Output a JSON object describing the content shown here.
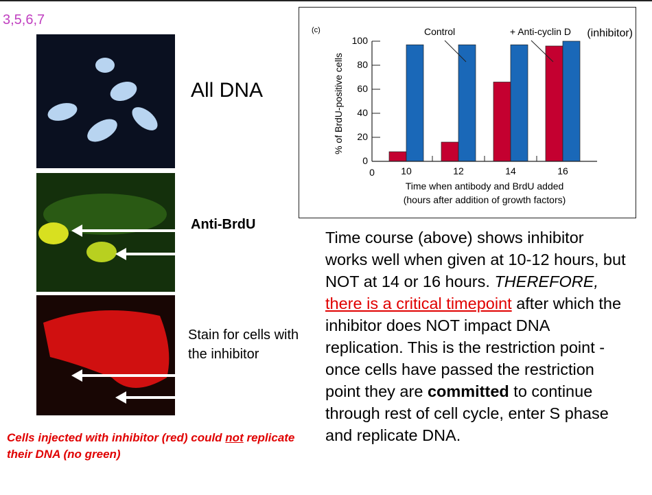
{
  "slide_number": "3,5,6,7",
  "panels": {
    "all_dna": "All DNA",
    "anti_brdu": "Anti-BrdU",
    "inhibitor_stain": "Stain for cells with the inhibitor"
  },
  "caption": {
    "part1": "Cells injected with inhibitor (red) could ",
    "not": "not",
    "part2": " replicate their DNA (no green)"
  },
  "body": {
    "p1": "Time course (above) shows inhibitor works well when given at 10-12 hours, but NOT at 14 or 16 hours. ",
    "therefore": "THEREFORE,",
    "link": "there is a critical timepoint",
    "p2": " after which the inhibitor does NOT impact DNA replication. This is the restriction point - once cells have passed the restriction point they are ",
    "committed": "committed",
    "p3": " to continue through rest of cell cycle, enter S phase and replicate DNA."
  },
  "chart_data": {
    "type": "bar",
    "panel_label": "(c)",
    "categories": [
      "10",
      "12",
      "14",
      "16"
    ],
    "series": [
      {
        "name": "+ Anti-cyclin D",
        "color": "#c40030",
        "values": [
          8,
          16,
          66,
          96
        ]
      },
      {
        "name": "Control",
        "color": "#1a68b8",
        "values": [
          97,
          97,
          97,
          100
        ]
      }
    ],
    "annotation": "(inhibitor)",
    "xlabel": "Time when antibody and BrdU added",
    "xlabel2": "(hours after addition of growth factors)",
    "ylabel": "% of BrdU-positive cells",
    "x_origin_label": "0",
    "yticks": [
      0,
      20,
      40,
      60,
      80,
      100
    ],
    "ylim": [
      0,
      100
    ]
  }
}
